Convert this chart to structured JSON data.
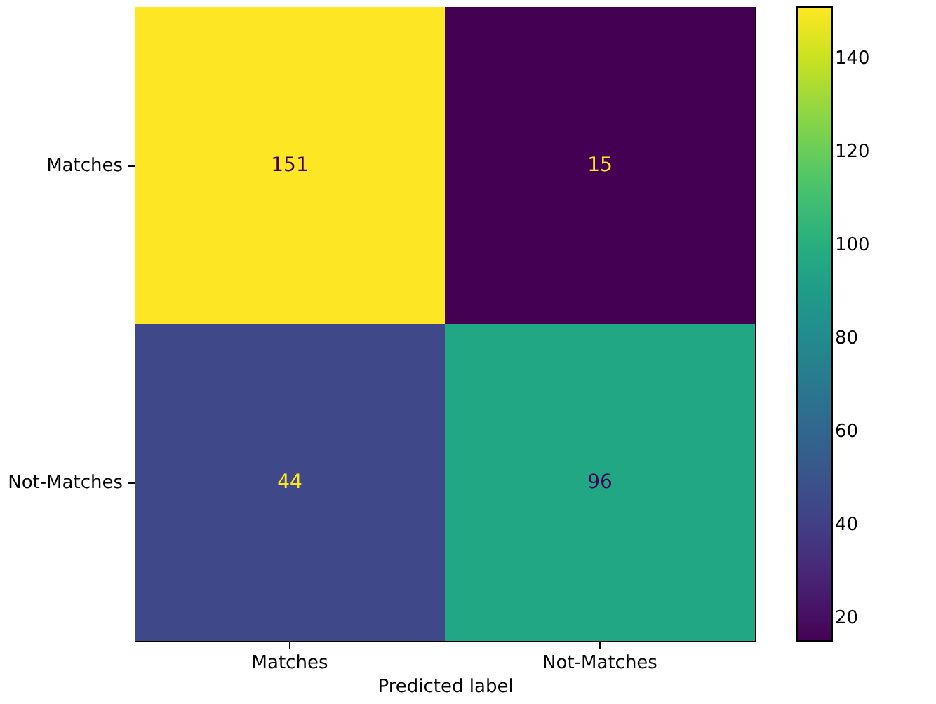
{
  "chart_data": {
    "type": "heatmap",
    "xlabel": "Predicted label",
    "categories": [
      "Matches",
      "Not-Matches"
    ],
    "y_categories": [
      "Matches",
      "Not-Matches"
    ],
    "cells": [
      [
        151,
        15
      ],
      [
        44,
        96
      ]
    ],
    "data_labels": true,
    "clim": [
      15,
      151
    ],
    "cticks": [
      20,
      40,
      60,
      80,
      100,
      120,
      140
    ]
  }
}
